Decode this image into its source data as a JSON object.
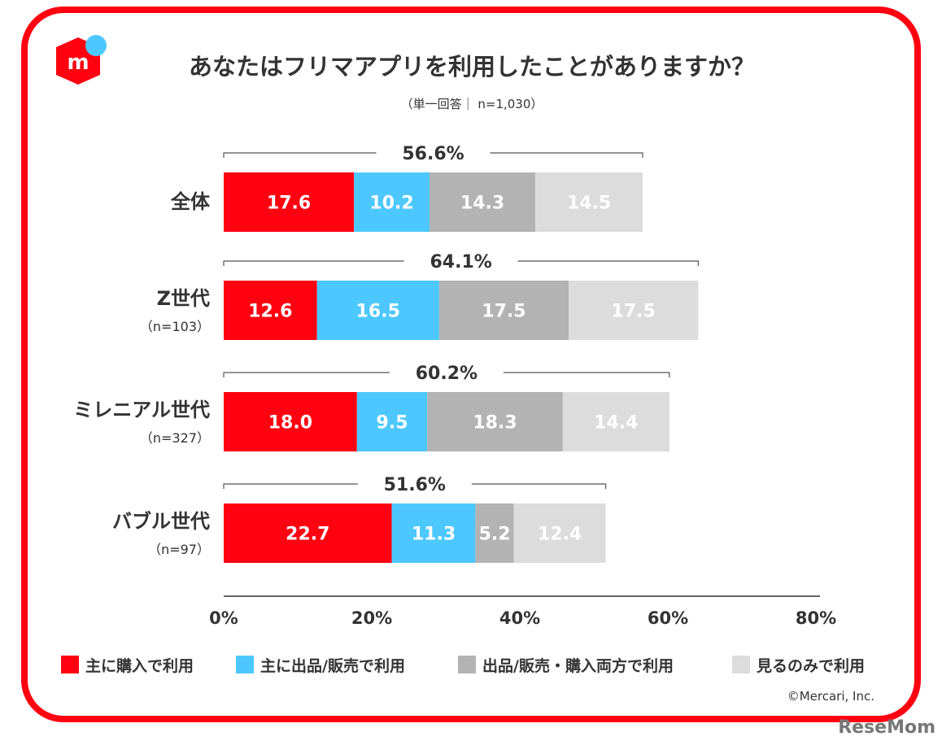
{
  "chart_data": {
    "type": "bar",
    "orientation": "horizontal-stacked",
    "title": "あなたはフリマアプリを利用したことがありますか？",
    "subtitle": "（単一回答｜ n=1,030）",
    "categories": [
      {
        "label": "全体",
        "sub": ""
      },
      {
        "label": "Z世代",
        "sub": "（n=103）"
      },
      {
        "label": "ミレニアル世代",
        "sub": "（n=327）"
      },
      {
        "label": "バブル世代",
        "sub": "（n=97）"
      }
    ],
    "totals": [
      "56.6%",
      "64.1%",
      "60.2%",
      "51.6%"
    ],
    "series": [
      {
        "name": "主に購入で利用",
        "color": "#ff0211",
        "values": [
          17.6,
          12.6,
          18.0,
          22.7
        ]
      },
      {
        "name": "主に出品/販売で利用",
        "color": "#4dc8ff",
        "values": [
          10.2,
          16.5,
          9.5,
          11.3
        ]
      },
      {
        "name": "出品/販売・購入両方で利用",
        "color": "#b3b3b3",
        "values": [
          14.3,
          17.5,
          18.3,
          5.2
        ]
      },
      {
        "name": "見るのみで利用",
        "color": "#dcdcdc",
        "values": [
          14.5,
          17.5,
          14.4,
          12.4
        ]
      }
    ],
    "xlim": [
      0,
      80
    ],
    "xticks": [
      0,
      20,
      40,
      60,
      80
    ],
    "xtick_suffix": "%",
    "legend_position": "bottom"
  },
  "copyright": "©Mercari, Inc.",
  "watermark": "ReseMom",
  "logo_text": "m"
}
